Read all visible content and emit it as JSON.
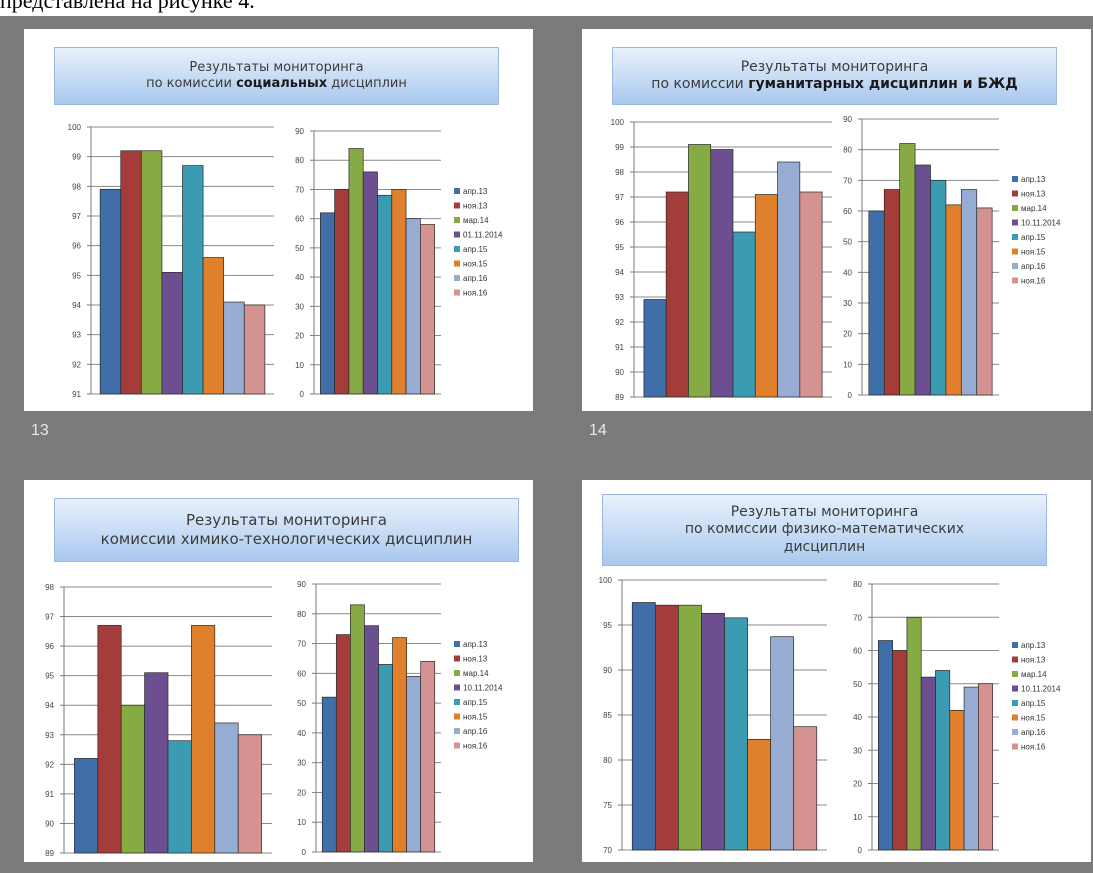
{
  "caption": "представлена на рисунке 4.",
  "colors": [
    "#3f6ea8",
    "#a43c3a",
    "#86aa44",
    "#6b4f91",
    "#3a9bb3",
    "#e07f2c",
    "#97acd3",
    "#d49391"
  ],
  "chart_data": [
    {
      "type": "bar",
      "slide_number": "13",
      "title_line1": "Результаты мониторинга",
      "title_line2_pre": "по комиссии ",
      "title_line2_bold": "социальных",
      "title_line2_post": " дисциплин",
      "left": {
        "ylim": [
          91,
          100
        ],
        "ticks": [
          91,
          92,
          93,
          94,
          95,
          96,
          97,
          98,
          99,
          100
        ],
        "values": [
          97.9,
          99.2,
          99.2,
          95.1,
          98.7,
          95.6,
          94.1,
          94.0
        ]
      },
      "right": {
        "ylim": [
          0,
          90
        ],
        "ticks": [
          0,
          10,
          20,
          30,
          40,
          50,
          60,
          70,
          80,
          90
        ],
        "values": [
          62,
          70,
          84,
          76,
          68,
          70,
          60,
          58
        ]
      },
      "legend": [
        "апр.13",
        "ноя.13",
        "мар.14",
        "01.11.2014",
        "апр.15",
        "ноя.15",
        "апр.16",
        "ноя.16"
      ]
    },
    {
      "type": "bar",
      "slide_number": "14",
      "title_line1": "Результаты мониторинга",
      "title_line2_pre": "по комиссии ",
      "title_line2_bold": "гуманитарных дисциплин и БЖД",
      "title_line2_post": "",
      "left": {
        "ylim": [
          89,
          100
        ],
        "ticks": [
          89,
          90,
          91,
          92,
          93,
          94,
          95,
          96,
          97,
          98,
          99,
          100
        ],
        "values": [
          92.9,
          97.2,
          99.1,
          98.9,
          95.6,
          97.1,
          98.4,
          97.2
        ]
      },
      "right": {
        "ylim": [
          0,
          90
        ],
        "ticks": [
          0,
          10,
          20,
          30,
          40,
          50,
          60,
          70,
          80,
          90
        ],
        "values": [
          60,
          67,
          82,
          75,
          70,
          62,
          67,
          61
        ]
      },
      "legend": [
        "апр.13",
        "ноя.13",
        "мар.14",
        "10.11.2014",
        "апр.15",
        "ноя.15",
        "апр.16",
        "ноя.16"
      ]
    },
    {
      "type": "bar",
      "slide_number": "",
      "title_line1": "Результаты мониторинга",
      "title_line2_pre": "комиссии химико-технологических дисциплин",
      "title_line2_bold": "",
      "title_line2_post": "",
      "left": {
        "ylim": [
          89,
          98
        ],
        "ticks": [
          89,
          90,
          91,
          92,
          93,
          94,
          95,
          96,
          97,
          98
        ],
        "values": [
          92.2,
          96.7,
          94.0,
          95.1,
          92.8,
          96.7,
          93.4,
          93.0
        ]
      },
      "right": {
        "ylim": [
          0,
          90
        ],
        "ticks": [
          0,
          10,
          20,
          30,
          40,
          50,
          60,
          70,
          80,
          90
        ],
        "values": [
          52,
          73,
          83,
          76,
          63,
          72,
          59,
          64
        ]
      },
      "legend": [
        "апр.13",
        "ноя.13",
        "мар.14",
        "10.11.2014",
        "апр.15",
        "ноя.15",
        "апр.16",
        "ноя.16"
      ]
    },
    {
      "type": "bar",
      "slide_number": "",
      "title_line1": "Результаты мониторинга",
      "title_line2_pre": "по комиссии физико-математических",
      "title_line2_bold": "",
      "title_line2_post": "",
      "title_line3": "дисциплин",
      "left": {
        "ylim": [
          70,
          100
        ],
        "ticks": [
          70,
          75,
          80,
          85,
          90,
          95,
          100
        ],
        "values": [
          97.5,
          97.2,
          97.2,
          96.3,
          95.8,
          82.3,
          93.7,
          83.7
        ]
      },
      "right": {
        "ylim": [
          0,
          80
        ],
        "ticks": [
          0,
          10,
          20,
          30,
          40,
          50,
          60,
          70,
          80
        ],
        "values": [
          63,
          60,
          70,
          52,
          54,
          42,
          49,
          50
        ]
      },
      "legend": [
        "апр.13",
        "ноя.13",
        "мар.14",
        "10.11.2014",
        "апр.15",
        "ноя.15",
        "апр.16",
        "ноя.16"
      ]
    }
  ]
}
